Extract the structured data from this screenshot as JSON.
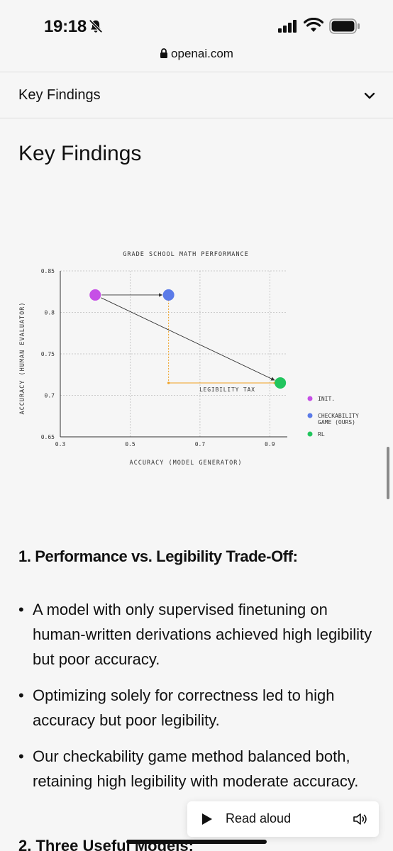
{
  "status_bar": {
    "time": "19:18"
  },
  "browser": {
    "url": "openai.com"
  },
  "toc": {
    "label": "Key Findings",
    "icon": "chevron-down-icon"
  },
  "page": {
    "title": "Key Findings"
  },
  "chart_data": {
    "type": "scatter",
    "title": "GRADE SCHOOL MATH PERFORMANCE",
    "xlabel": "ACCURACY (MODEL GENERATOR)",
    "ylabel": "ACCURACY (HUMAN EVALUATOR)",
    "xlim": [
      0.3,
      0.95
    ],
    "ylim": [
      0.65,
      0.85
    ],
    "x_ticks": [
      0.3,
      0.5,
      0.7,
      0.9
    ],
    "x_tick_labels": [
      "0.3",
      "0.5",
      "0.7",
      "0.9"
    ],
    "y_ticks": [
      0.65,
      0.7,
      0.75,
      0.8,
      0.85
    ],
    "y_tick_labels": [
      "0.65",
      "0.7",
      "0.75",
      "0.8",
      "0.85"
    ],
    "grid": true,
    "legend_position": "right",
    "series": [
      {
        "name": "INIT.",
        "color": "#c64fe6",
        "x": 0.4,
        "y": 0.821
      },
      {
        "name": "CHECKABILITY GAME (OURS)",
        "name_lines": [
          "CHECKABILITY",
          "GAME (OURS)"
        ],
        "color": "#5b7be8",
        "x": 0.61,
        "y": 0.821
      },
      {
        "name": "RL",
        "color": "#22c55e",
        "x": 0.93,
        "y": 0.715
      }
    ],
    "arrows": [
      {
        "from": [
          0.4,
          0.821
        ],
        "to": [
          0.61,
          0.821
        ]
      },
      {
        "from": [
          0.4,
          0.821
        ],
        "to": [
          0.93,
          0.715
        ]
      }
    ],
    "annotation": {
      "text": "LEGIBILITY TAX",
      "color": "#f0a020"
    }
  },
  "section1": {
    "heading": "1. Performance vs. Legibility Trade-Off:",
    "bullets": [
      "A model with only supervised finetuning on human-written derivations achieved high legibility but poor accuracy.",
      "Optimizing solely for correctness led to high accuracy but poor legibility.",
      "Our checkability game method balanced both, retaining high legibility with moderate accuracy."
    ]
  },
  "section2": {
    "heading": "2. Three Useful Models:"
  },
  "read_aloud": {
    "label": "Read aloud"
  }
}
